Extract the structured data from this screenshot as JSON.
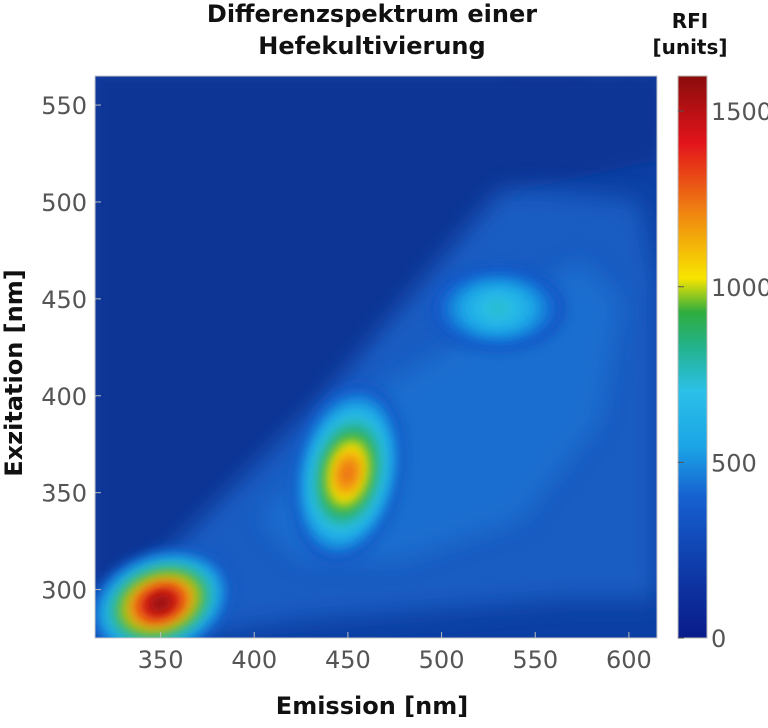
{
  "chart_data": {
    "type": "heatmap",
    "title_lines": [
      "Differenzspektrum einer",
      "Hefekultivierung"
    ],
    "xlabel": "Emission [nm]",
    "ylabel": "Exzitation [nm]",
    "xlim": [
      315,
      615
    ],
    "ylim": [
      275,
      565
    ],
    "x_ticks": [
      350,
      400,
      450,
      500,
      550,
      600
    ],
    "y_ticks": [
      300,
      350,
      400,
      450,
      500,
      550
    ],
    "colorbar": {
      "title_lines": [
        "RFI",
        "[units]"
      ],
      "range": [
        0,
        1600
      ],
      "ticks": [
        0,
        500,
        1000,
        1500
      ]
    },
    "peaks": [
      {
        "emission": 350,
        "excitation": 293,
        "rfi": 1600
      },
      {
        "emission": 450,
        "excitation": 360,
        "rfi": 1250
      },
      {
        "emission": 530,
        "excitation": 445,
        "rfi": 750
      }
    ],
    "background_rfi": 80
  }
}
